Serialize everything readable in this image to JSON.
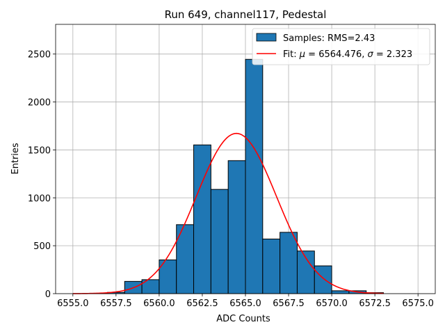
{
  "chart_data": {
    "type": "bar",
    "title": "Run 649, channel117, Pedestal",
    "xlabel": "ADC Counts",
    "ylabel": "Entries",
    "xlim": [
      6554.0,
      6576.0
    ],
    "ylim": [
      0,
      2810
    ],
    "x_ticks": [
      6555.0,
      6557.5,
      6560.0,
      6562.5,
      6565.0,
      6567.5,
      6570.0,
      6572.5,
      6575.0
    ],
    "x_tick_labels": [
      "6555.0",
      "6557.5",
      "6560.0",
      "6562.5",
      "6565.0",
      "6567.5",
      "6570.0",
      "6572.5",
      "6575.0"
    ],
    "y_ticks": [
      0,
      500,
      1000,
      1500,
      2000,
      2500
    ],
    "y_tick_labels": [
      "0",
      "500",
      "1000",
      "1500",
      "2000",
      "2500"
    ],
    "grid": true,
    "legend_position": "top-right",
    "bin_width": 1,
    "bins": [
      {
        "x": 6556,
        "value": 4
      },
      {
        "x": 6557,
        "value": 13
      },
      {
        "x": 6558,
        "value": 128
      },
      {
        "x": 6559,
        "value": 146
      },
      {
        "x": 6560,
        "value": 352
      },
      {
        "x": 6561,
        "value": 720
      },
      {
        "x": 6562,
        "value": 1552
      },
      {
        "x": 6563,
        "value": 1088
      },
      {
        "x": 6564,
        "value": 1388
      },
      {
        "x": 6565,
        "value": 2445
      },
      {
        "x": 6566,
        "value": 570
      },
      {
        "x": 6567,
        "value": 640
      },
      {
        "x": 6568,
        "value": 445
      },
      {
        "x": 6569,
        "value": 290
      },
      {
        "x": 6570,
        "value": 30
      },
      {
        "x": 6571,
        "value": 30
      },
      {
        "x": 6572,
        "value": 10
      }
    ],
    "series": [
      {
        "name": "Samples: RMS=2.43",
        "kind": "histogram",
        "color": "#1f77b4",
        "edge_color": "#000000"
      },
      {
        "name": "Fit",
        "kind": "gaussian",
        "color": "#ff0000",
        "mu": 6564.476,
        "sigma": 2.323,
        "amplitude": 1672,
        "x_range": [
          6555,
          6573
        ]
      }
    ],
    "legend": {
      "samples_label": "Samples: RMS=2.43",
      "fit_prefix": "Fit: ",
      "mu_symbol": "μ",
      "mu_text": " = 6564.476, ",
      "sigma_symbol": "σ",
      "sigma_text": " = 2.323"
    }
  }
}
